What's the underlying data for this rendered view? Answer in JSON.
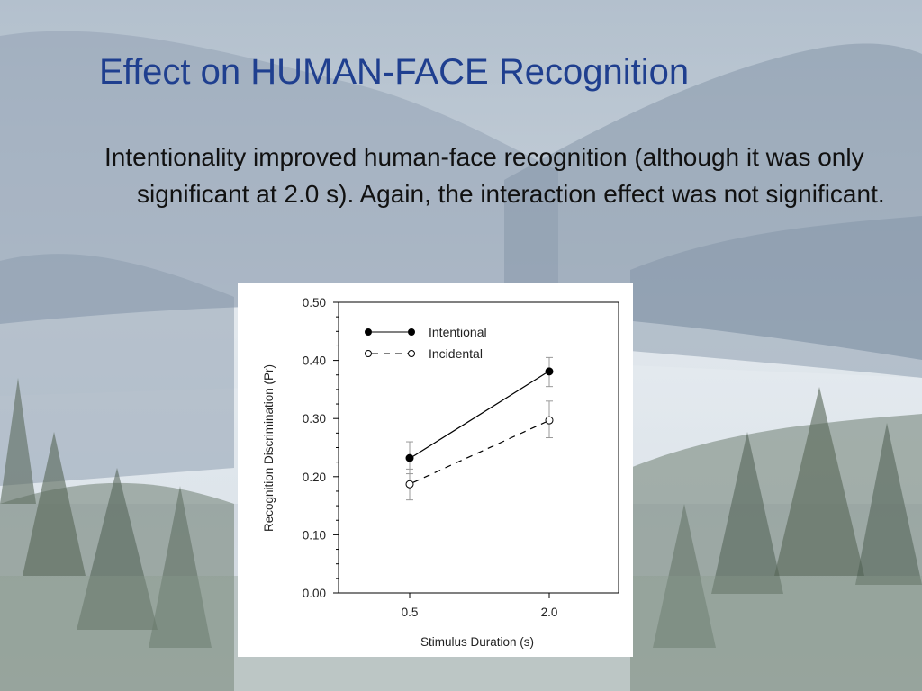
{
  "slide": {
    "title": "Effect on HUMAN-FACE Recognition",
    "body": "Intentionality improved human-face recognition (although it was only significant at 2.0 s). Again, the interaction effect was not significant."
  },
  "chart_data": {
    "type": "line",
    "title": "",
    "xlabel": "Stimulus Duration (s)",
    "ylabel": "Recognition Discrimination (Pr)",
    "categories": [
      "0.5",
      "2.0"
    ],
    "ylim": [
      0,
      0.5
    ],
    "y_ticks": [
      "0.00",
      "0.10",
      "0.20",
      "0.30",
      "0.40",
      "0.50"
    ],
    "grid": false,
    "legend_position": "top-left",
    "series": [
      {
        "name": "Intentional",
        "values": [
          0.232,
          0.381
        ],
        "error_low": [
          0.205,
          0.355
        ],
        "error_high": [
          0.26,
          0.405
        ],
        "line_style": "solid",
        "marker": "filled-circle",
        "color": "#000000"
      },
      {
        "name": "Incidental",
        "values": [
          0.187,
          0.297
        ],
        "error_low": [
          0.16,
          0.267
        ],
        "error_high": [
          0.213,
          0.33
        ],
        "line_style": "dashed",
        "marker": "open-circle",
        "color": "#000000"
      }
    ]
  }
}
